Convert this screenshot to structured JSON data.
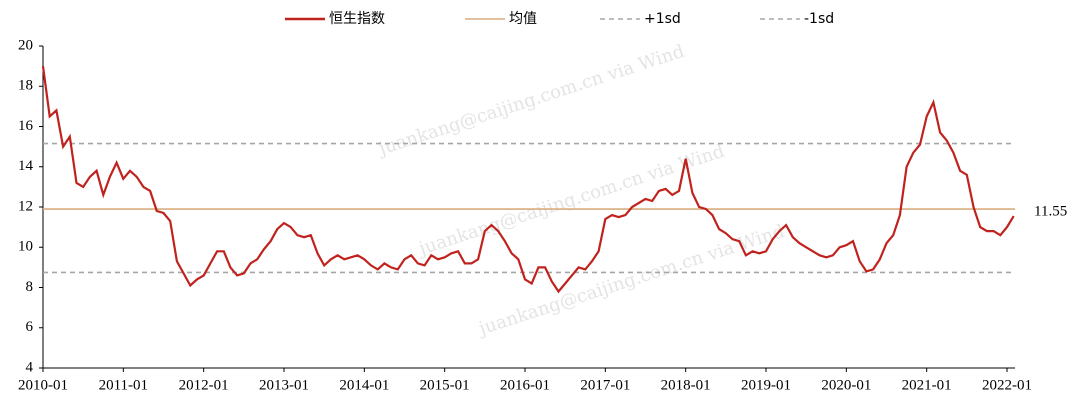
{
  "chart_data": {
    "type": "line",
    "watermark": "juankang@caijing.com.cn via Wind",
    "annotation": "11.55",
    "x": [
      "2010-01",
      "2010-02",
      "2010-03",
      "2010-04",
      "2010-05",
      "2010-06",
      "2010-07",
      "2010-08",
      "2010-09",
      "2010-10",
      "2010-11",
      "2010-12",
      "2011-01",
      "2011-02",
      "2011-03",
      "2011-04",
      "2011-05",
      "2011-06",
      "2011-07",
      "2011-08",
      "2011-09",
      "2011-10",
      "2011-11",
      "2011-12",
      "2012-01",
      "2012-02",
      "2012-03",
      "2012-04",
      "2012-05",
      "2012-06",
      "2012-07",
      "2012-08",
      "2012-09",
      "2012-10",
      "2012-11",
      "2012-12",
      "2013-01",
      "2013-02",
      "2013-03",
      "2013-04",
      "2013-05",
      "2013-06",
      "2013-07",
      "2013-08",
      "2013-09",
      "2013-10",
      "2013-11",
      "2013-12",
      "2014-01",
      "2014-02",
      "2014-03",
      "2014-04",
      "2014-05",
      "2014-06",
      "2014-07",
      "2014-08",
      "2014-09",
      "2014-10",
      "2014-11",
      "2014-12",
      "2015-01",
      "2015-02",
      "2015-03",
      "2015-04",
      "2015-05",
      "2015-06",
      "2015-07",
      "2015-08",
      "2015-09",
      "2015-10",
      "2015-11",
      "2015-12",
      "2016-01",
      "2016-02",
      "2016-03",
      "2016-04",
      "2016-05",
      "2016-06",
      "2016-07",
      "2016-08",
      "2016-09",
      "2016-10",
      "2016-11",
      "2016-12",
      "2017-01",
      "2017-02",
      "2017-03",
      "2017-04",
      "2017-05",
      "2017-06",
      "2017-07",
      "2017-08",
      "2017-09",
      "2017-10",
      "2017-11",
      "2017-12",
      "2018-01",
      "2018-02",
      "2018-03",
      "2018-04",
      "2018-05",
      "2018-06",
      "2018-07",
      "2018-08",
      "2018-09",
      "2018-10",
      "2018-11",
      "2018-12",
      "2019-01",
      "2019-02",
      "2019-03",
      "2019-04",
      "2019-05",
      "2019-06",
      "2019-07",
      "2019-08",
      "2019-09",
      "2019-10",
      "2019-11",
      "2019-12",
      "2020-01",
      "2020-02",
      "2020-03",
      "2020-04",
      "2020-05",
      "2020-06",
      "2020-07",
      "2020-08",
      "2020-09",
      "2020-10",
      "2020-11",
      "2020-12",
      "2021-01",
      "2021-02",
      "2021-03",
      "2021-04",
      "2021-05",
      "2021-06",
      "2021-07",
      "2021-08",
      "2021-09",
      "2021-10",
      "2021-11",
      "2021-12",
      "2022-01",
      "2022-02"
    ],
    "series": [
      {
        "name": "恒生指数",
        "color": "#c0231e",
        "values": [
          19,
          16.5,
          16.8,
          15,
          15.5,
          13.2,
          13.0,
          13.5,
          13.8,
          12.6,
          13.5,
          14.2,
          13.4,
          13.8,
          13.5,
          13.0,
          12.8,
          11.8,
          11.7,
          11.3,
          9.3,
          8.7,
          8.1,
          8.4,
          8.6,
          9.2,
          9.8,
          9.8,
          9.0,
          8.6,
          8.7,
          9.2,
          9.4,
          9.9,
          10.3,
          10.9,
          11.2,
          11.0,
          10.6,
          10.5,
          10.6,
          9.7,
          9.1,
          9.4,
          9.6,
          9.4,
          9.5,
          9.6,
          9.4,
          9.1,
          8.9,
          9.2,
          9.0,
          8.9,
          9.4,
          9.6,
          9.2,
          9.1,
          9.6,
          9.4,
          9.5,
          9.7,
          9.8,
          9.2,
          9.2,
          9.4,
          10.8,
          11.1,
          10.8,
          10.3,
          9.7,
          9.4,
          8.4,
          8.2,
          9.0,
          9.0,
          8.3,
          7.8,
          8.2,
          8.6,
          9.0,
          8.9,
          9.3,
          9.8,
          11.4,
          11.6,
          11.5,
          11.6,
          12.0,
          12.2,
          12.4,
          12.3,
          12.8,
          12.9,
          12.6,
          12.8,
          14.4,
          12.7,
          12.0,
          11.9,
          11.6,
          10.9,
          10.7,
          10.4,
          10.3,
          9.6,
          9.8,
          9.7,
          9.8,
          10.4,
          10.8,
          11.1,
          10.5,
          10.2,
          10.0,
          9.8,
          9.6,
          9.5,
          9.6,
          10.0,
          10.1,
          10.3,
          9.3,
          8.8,
          8.9,
          9.4,
          10.2,
          10.6,
          11.6,
          14.0,
          14.7,
          15.1,
          16.5,
          17.2,
          15.7,
          15.3,
          14.7,
          13.8,
          13.6,
          12.0,
          11.0,
          10.8,
          10.8,
          10.6,
          11.0,
          11.55
        ]
      },
      {
        "name": "均值",
        "color": "#d8ae7e",
        "level": 11.9
      },
      {
        "name": "+1sd",
        "color": "#a6a6a6",
        "dashed": true,
        "level": 15.15
      },
      {
        "name": "-1sd",
        "color": "#a6a6a6",
        "dashed": true,
        "level": 8.75
      }
    ],
    "xticks": [
      "2010-01",
      "2011-01",
      "2012-01",
      "2013-01",
      "2014-01",
      "2015-01",
      "2016-01",
      "2017-01",
      "2018-01",
      "2019-01",
      "2020-01",
      "2021-01",
      "2022-01"
    ],
    "ylim": [
      4,
      20
    ],
    "yticks": [
      4,
      6,
      8,
      10,
      12,
      14,
      16,
      18,
      20
    ]
  }
}
